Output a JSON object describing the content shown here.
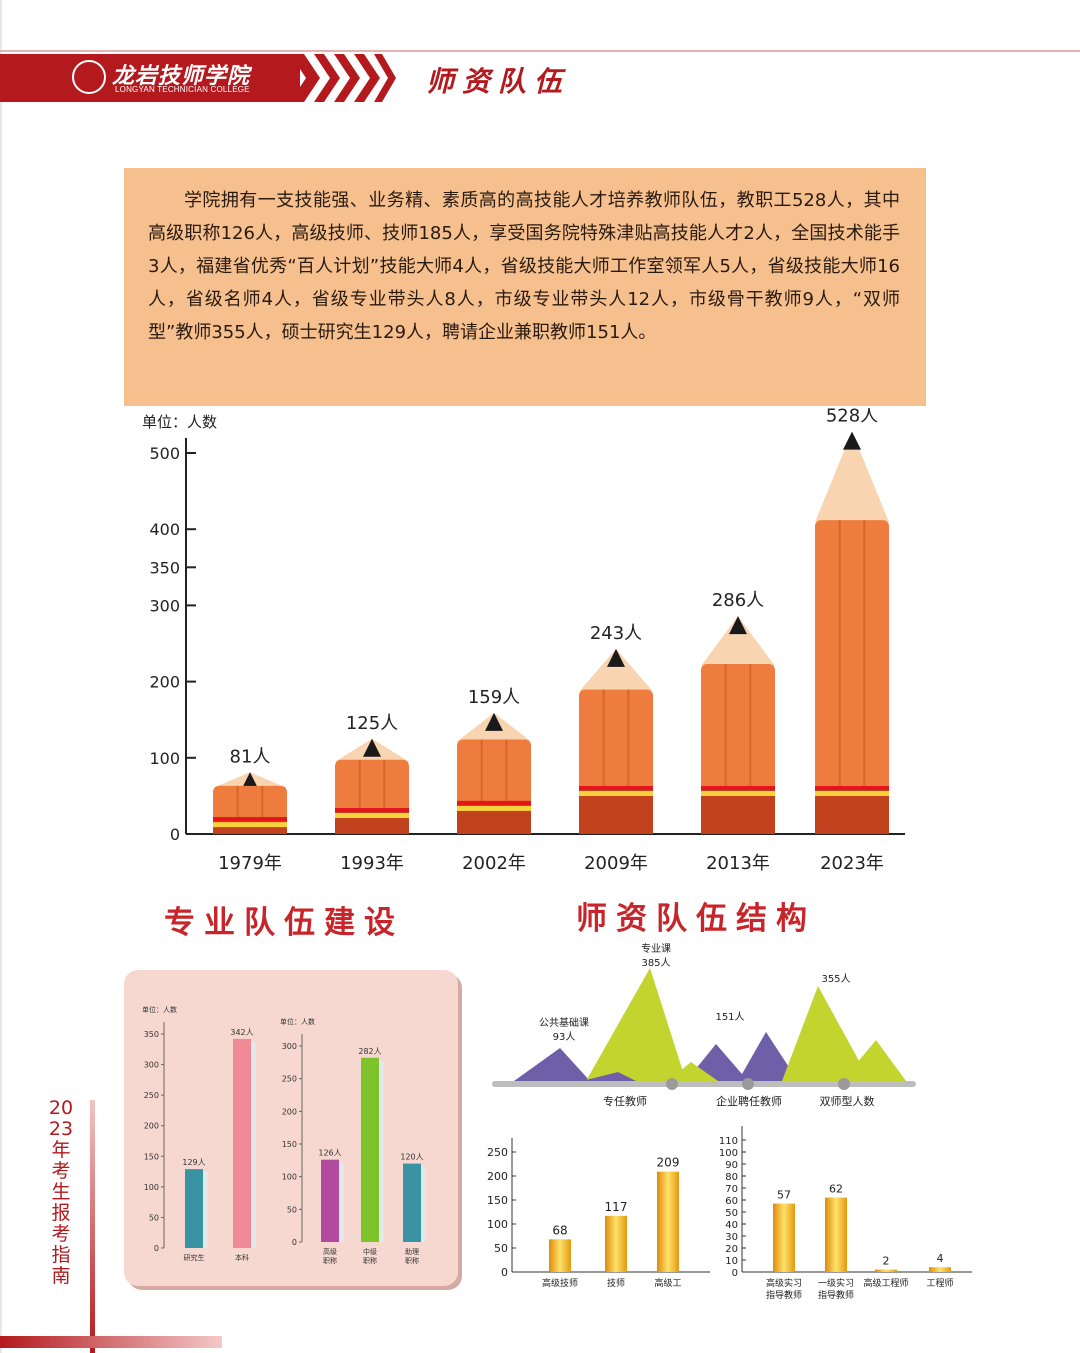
{
  "header": {
    "logo_name": "龙岩技师学院",
    "logo_sub": "LONGYAN TECHNICIAN COLLEGE",
    "section_title": "师资队伍"
  },
  "intro": {
    "text": "学院拥有一支技能强、业务精、素质高的高技能人才培养教师队伍，教职工528人，其中高级职称126人，高级技师、技师185人，享受国务院特殊津贴高技能人才2人，全国技术能手3人，福建省优秀“百人计划”技能大师4人，省级技能大师工作室领军人5人，省级技能大师16人，省级名师4人，省级专业带头人8人，市级专业带头人12人，市级骨干教师9人，“双师型”教师355人，硕士研究生129人，聘请企业兼职教师151人。"
  },
  "headings": {
    "left": "专业队伍建设",
    "right": "师资队伍结构"
  },
  "side_label": "2023年考生报考指南",
  "colors": {
    "brand_red": "#b3191d",
    "pencil_body": "#ee7c3e",
    "pencil_tip": "#f8d4b0",
    "mountain_purple": "#6f5fa8",
    "mountain_green": "#c4d42e",
    "gold_bar": "#f2b21a"
  },
  "chart_data": [
    {
      "id": "main",
      "type": "bar",
      "ylabel": "单位：人数",
      "ylim": [
        0,
        520
      ],
      "yticks": [
        0,
        100,
        200,
        300,
        350,
        400,
        500
      ],
      "categories": [
        "1979年",
        "1993年",
        "2002年",
        "2009年",
        "2013年",
        "2023年"
      ],
      "values": [
        81,
        125,
        159,
        243,
        286,
        528
      ],
      "data_labels": [
        "81人",
        "125人",
        "159人",
        "243人",
        "286人",
        "528人"
      ]
    },
    {
      "id": "education",
      "type": "bar",
      "ylabel": "单位：人数",
      "ylim": [
        0,
        350
      ],
      "yticks": [
        0,
        50,
        100,
        150,
        200,
        250,
        300,
        350
      ],
      "categories": [
        "研究生",
        "本科"
      ],
      "values": [
        129,
        342
      ],
      "data_labels": [
        "129人",
        "342人"
      ],
      "colors": [
        "#3a93a3",
        "#ef8a96"
      ]
    },
    {
      "id": "titles",
      "type": "bar",
      "ylabel": "单位：人数",
      "ylim": [
        0,
        300
      ],
      "yticks": [
        0,
        50,
        100,
        150,
        200,
        250,
        300
      ],
      "categories": [
        [
          "高级",
          "职称"
        ],
        [
          "中级",
          "职称"
        ],
        [
          "助理",
          "职称"
        ]
      ],
      "values": [
        126,
        282,
        120
      ],
      "data_labels": [
        "126人",
        "282人",
        "120人"
      ],
      "colors": [
        "#b24aa0",
        "#7cc42a",
        "#3a93a3"
      ]
    },
    {
      "id": "structure",
      "type": "area",
      "peaks": [
        {
          "label": "公共基础课",
          "value_label": "93人",
          "value": 93
        },
        {
          "label": "专业课",
          "value_label": "385人",
          "value": 385
        },
        {
          "label": "",
          "value_label": "151人",
          "value": 151
        },
        {
          "label": "",
          "value_label": "355人",
          "value": 355
        }
      ],
      "categories": [
        "专任教师",
        "企业聘任教师",
        "双师型人数"
      ]
    },
    {
      "id": "skill_level",
      "type": "bar",
      "ylim": [
        0,
        250
      ],
      "yticks": [
        0,
        50,
        100,
        150,
        200,
        250
      ],
      "categories": [
        "高级技师",
        "技师",
        "高级工"
      ],
      "values": [
        68,
        117,
        209
      ]
    },
    {
      "id": "tutors",
      "type": "bar",
      "ylim": [
        0,
        110
      ],
      "yticks": [
        0,
        10,
        20,
        30,
        40,
        50,
        60,
        70,
        80,
        90,
        100,
        110
      ],
      "categories": [
        [
          "高级实习",
          "指导教师"
        ],
        [
          "一级实习",
          "指导教师"
        ],
        [
          "高级工程师"
        ],
        [
          "工程师"
        ]
      ],
      "values": [
        57,
        62,
        2,
        4
      ]
    }
  ]
}
